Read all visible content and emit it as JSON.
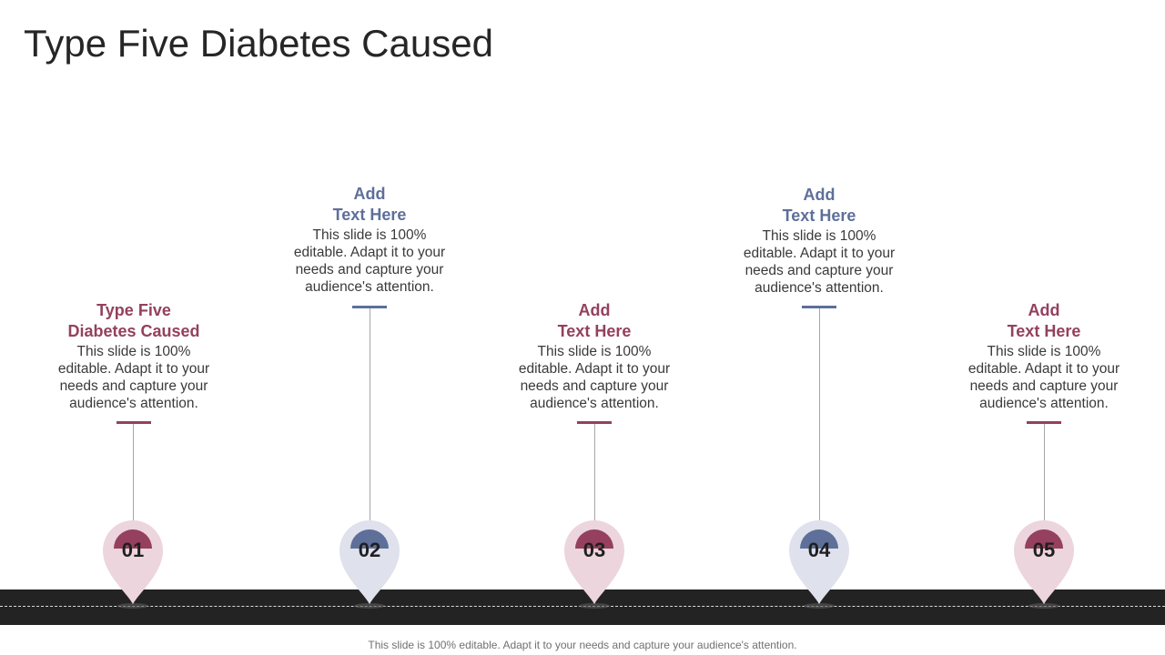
{
  "title": "Type Five Diabetes Caused",
  "colors": {
    "maroon": "#94405e",
    "blue": "#5e6f99",
    "pin_pink": "#ecd5dd",
    "pin_blue": "#dfe1ec",
    "road": "#232323"
  },
  "milestones": [
    {
      "number": "01",
      "heading": "Type Five\nDiabetes Caused",
      "body": "This slide is 100% editable. Adapt it to your needs and capture your audience's attention.",
      "color": "maroon",
      "icon": "map-pin-icon"
    },
    {
      "number": "02",
      "heading": "Add\nText Here",
      "body": "This slide is 100% editable. Adapt it to your needs and capture your audience's attention.",
      "color": "blue",
      "icon": "map-pin-icon"
    },
    {
      "number": "03",
      "heading": "Add\nText Here",
      "body": "This slide is 100% editable. Adapt it to your needs and capture your audience's attention.",
      "color": "maroon",
      "icon": "map-pin-icon"
    },
    {
      "number": "04",
      "heading": "Add\nText Here",
      "body": "This slide is 100% editable. Adapt it to your needs and capture your audience's attention.",
      "color": "blue",
      "icon": "map-pin-icon"
    },
    {
      "number": "05",
      "heading": "Add\nText Here",
      "body": "This slide is 100% editable. Adapt it to your needs and capture your audience's attention.",
      "color": "maroon",
      "icon": "map-pin-icon"
    }
  ],
  "footer": "This slide is 100% editable. Adapt it to your needs and capture your audience's attention."
}
